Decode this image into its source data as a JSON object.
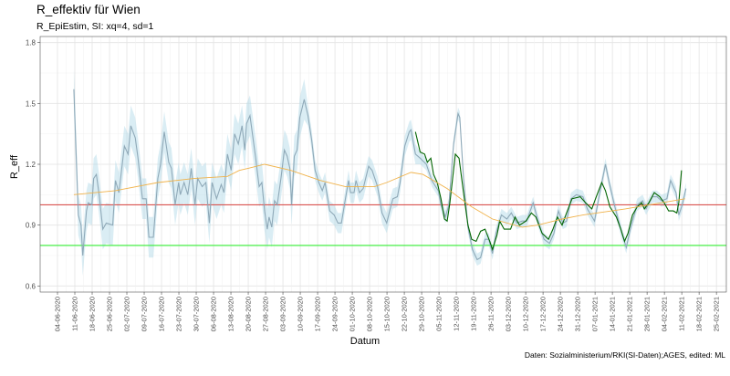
{
  "chart_data": {
    "type": "line",
    "title": "R_effektiv für Wien",
    "subtitle": "R_EpiEstim, SI: xq=4, sd=1",
    "xlabel": "Datum",
    "ylabel": "R_eff",
    "caption": "Daten: Sozialministerium/RKI(SI-Daten);AGES, edited: ML",
    "x_origin_date": "04-06-2020",
    "x_unit": "days since 04-06-2020",
    "xlim": [
      -7,
      270
    ],
    "ylim": [
      0.57,
      1.83
    ],
    "y_ticks": [
      0.6,
      0.9,
      1.2,
      1.5,
      1.8
    ],
    "y_tick_labels": [
      "0.6",
      "0.9",
      "1.2",
      "1.5",
      "1.8"
    ],
    "x_tick_labels": [
      "04-06-2020",
      "11-06-2020",
      "18-06-2020",
      "25-06-2020",
      "02-07-2020",
      "09-07-2020",
      "16-07-2020",
      "23-07-2020",
      "30-07-2020",
      "06-08-2020",
      "13-08-2020",
      "20-08-2020",
      "27-08-2020",
      "03-09-2020",
      "10-09-2020",
      "17-09-2020",
      "24-09-2020",
      "01-10-2020",
      "08-10-2020",
      "15-10-2020",
      "22-10-2020",
      "29-10-2020",
      "05-11-2020",
      "12-11-2020",
      "19-11-2020",
      "26-11-2020",
      "03-12-2020",
      "10-12-2020",
      "17-12-2020",
      "24-12-2020",
      "31-12-2020",
      "07-01-2021",
      "14-01-2021",
      "21-01-2021",
      "28-01-2021",
      "04-02-2021",
      "11-02-2021",
      "18-02-2021",
      "25-02-2021"
    ],
    "grid": true,
    "reference_lines": [
      {
        "name": "R=1",
        "y": 1.0,
        "color": "#d9534f"
      },
      {
        "name": "R=0.8",
        "y": 0.8,
        "color": "#33ee33"
      }
    ],
    "series": [
      {
        "name": "R_EpiEstim",
        "color": "#8fa9b8",
        "ribbon_color": "#add8e6",
        "ci_halfwidth": [
          {
            "until_day": 100,
            "half": 0.1
          },
          {
            "until_day": 145,
            "half": 0.05
          },
          {
            "until_day": 300,
            "half": 0.03
          }
        ],
        "x": [
          6.6,
          8.4,
          9.5,
          10.2,
          11.7,
          12.4,
          13.9,
          14.6,
          15.7,
          16.8,
          18.3,
          19.7,
          22.3,
          23.4,
          24.8,
          27.0,
          28.5,
          29.6,
          31.4,
          32.5,
          34.3,
          35.8,
          36.9,
          38.7,
          40.5,
          41.6,
          43.1,
          44.9,
          46.0,
          47.5,
          48.9,
          49.6,
          51.1,
          52.6,
          54.0,
          55.5,
          56.6,
          58.4,
          59.9,
          61.3,
          62.4,
          64.2,
          66.1,
          67.2,
          68.6,
          70.1,
          71.5,
          73.0,
          74.5,
          75.6,
          76.3,
          77.7,
          78.8,
          79.9,
          81.4,
          82.5,
          83.6,
          84.7,
          85.4,
          86.5,
          87.6,
          88.7,
          90.2,
          91.6,
          92.7,
          93.8,
          94.5,
          95.6,
          96.7,
          97.8,
          99.6,
          101.1,
          102.6,
          104.0,
          105.5,
          106.9,
          108.0,
          109.9,
          111.7,
          113.2,
          114.6,
          116.1,
          117.5,
          118.3,
          119.7,
          120.5,
          121.9,
          123.4,
          125.6,
          127.0,
          128.1,
          129.2,
          131.0,
          132.9,
          134.3,
          135.4,
          137.2,
          138.3,
          140.2,
          142.0,
          142.7,
          144.5,
          146.4,
          148.9,
          151.1,
          153.7,
          154.8,
          156.6,
          158.0,
          159.9,
          161.7,
          162.4,
          163.9,
          165.7,
          167.5,
          169.4,
          170.8,
          172.6,
          174.1,
          175.6,
          177.0,
          179.2,
          181.4,
          183.2,
          185.4,
          187.6,
          189.4,
          192.0,
          193.8,
          196.4,
          198.6,
          200.4,
          202.2,
          204.0,
          205.5,
          207.3,
          209.5,
          212.1,
          213.9,
          216.8,
          218.6,
          221.2,
          222.7,
          224.8,
          227.8,
          229.6,
          231.4,
          234.0,
          236.2,
          237.6,
          240.2,
          242.0,
          243.8,
          246.0,
          247.5,
          249.7,
          250.8,
          252.2,
          253.7
        ],
        "y": [
          1.57,
          0.95,
          0.9,
          0.75,
          0.97,
          1.01,
          1.0,
          1.13,
          1.15,
          1.05,
          0.88,
          0.91,
          0.9,
          1.12,
          1.06,
          1.29,
          1.25,
          1.39,
          1.33,
          1.23,
          1.03,
          1.03,
          0.84,
          0.84,
          1.13,
          1.2,
          1.36,
          1.21,
          1.18,
          1.0,
          1.11,
          1.05,
          1.11,
          1.05,
          1.18,
          1.0,
          1.13,
          1.09,
          1.11,
          0.91,
          1.11,
          1.03,
          1.1,
          1.06,
          1.25,
          1.17,
          1.35,
          1.3,
          1.39,
          1.27,
          1.4,
          1.44,
          1.34,
          1.24,
          1.09,
          1.11,
          0.97,
          0.88,
          0.94,
          0.89,
          1.02,
          1.0,
          1.13,
          1.27,
          1.24,
          1.18,
          1.0,
          1.24,
          1.27,
          1.43,
          1.52,
          1.44,
          1.32,
          1.17,
          1.11,
          1.07,
          1.11,
          0.97,
          0.95,
          0.91,
          0.91,
          1.02,
          1.12,
          1.06,
          1.06,
          1.12,
          1.06,
          1.08,
          1.19,
          1.17,
          1.13,
          1.09,
          0.96,
          0.91,
          0.98,
          1.03,
          1.04,
          1.11,
          1.29,
          1.36,
          1.37,
          1.25,
          1.23,
          1.2,
          1.12,
          1.07,
          1.0,
          0.94,
          1.0,
          1.3,
          1.45,
          1.43,
          1.13,
          0.89,
          0.78,
          0.73,
          0.74,
          0.83,
          0.83,
          0.76,
          0.86,
          0.95,
          0.93,
          0.96,
          0.91,
          0.92,
          0.92,
          1.01,
          0.93,
          0.83,
          0.81,
          0.86,
          0.97,
          0.91,
          0.92,
          1.03,
          1.05,
          1.04,
          0.98,
          0.92,
          1.04,
          1.2,
          1.11,
          1.0,
          0.86,
          0.79,
          0.89,
          1.0,
          1.02,
          0.98,
          1.04,
          1.04,
          1.02,
          1.03,
          1.12,
          1.06,
          0.95,
          1.0,
          1.08
        ]
      },
      {
        "name": "R_AGES",
        "color": "#006400",
        "x": [
          144.5,
          146.4,
          148.2,
          149.3,
          150.7,
          151.8,
          153.3,
          154.8,
          156.2,
          157.3,
          158.4,
          160.6,
          162.1,
          163.9,
          165.7,
          167.2,
          169.0,
          170.8,
          172.6,
          174.5,
          175.6,
          177.4,
          178.5,
          180.3,
          182.9,
          184.7,
          186.5,
          189.1,
          191.3,
          193.1,
          195.6,
          198.2,
          200.0,
          201.8,
          203.7,
          205.5,
          207.7,
          211.0,
          213.2,
          215.7,
          217.5,
          219.7,
          221.2,
          223.0,
          225.6,
          227.4,
          228.9,
          230.3,
          232.1,
          234.0,
          235.8,
          236.9,
          238.7,
          240.9,
          243.1,
          244.9,
          246.7,
          248.6,
          250.0,
          250.8,
          251.9
        ],
        "y": [
          1.36,
          1.26,
          1.25,
          1.21,
          1.23,
          1.15,
          1.11,
          1.03,
          0.93,
          0.92,
          1.01,
          1.25,
          1.23,
          1.06,
          0.9,
          0.83,
          0.82,
          0.87,
          0.88,
          0.82,
          0.78,
          0.85,
          0.92,
          0.88,
          0.88,
          0.94,
          0.9,
          0.92,
          0.96,
          0.94,
          0.86,
          0.83,
          0.88,
          0.94,
          0.9,
          0.96,
          1.03,
          1.04,
          1.01,
          0.98,
          1.04,
          1.11,
          1.07,
          0.99,
          0.94,
          0.88,
          0.82,
          0.86,
          0.95,
          0.99,
          1.01,
          0.98,
          1.01,
          1.06,
          1.04,
          1.01,
          0.97,
          0.97,
          0.96,
          1.01,
          1.17
        ]
      },
      {
        "name": "Trend",
        "color": "#f0b24a",
        "x": [
          6.6,
          23.4,
          40.5,
          55.1,
          68.6,
          73.4,
          77.0,
          83.6,
          94.2,
          106.2,
          116.1,
          128.1,
          132.9,
          142.7,
          147.5,
          157.3,
          167.2,
          175.6,
          187.6,
          193.8,
          203.7,
          212.1,
          229.2,
          253.3
        ],
        "y": [
          1.05,
          1.07,
          1.11,
          1.13,
          1.14,
          1.17,
          1.18,
          1.2,
          1.17,
          1.12,
          1.09,
          1.09,
          1.11,
          1.16,
          1.15,
          1.08,
          0.99,
          0.93,
          0.89,
          0.9,
          0.93,
          0.95,
          0.98,
          1.03
        ]
      }
    ]
  }
}
